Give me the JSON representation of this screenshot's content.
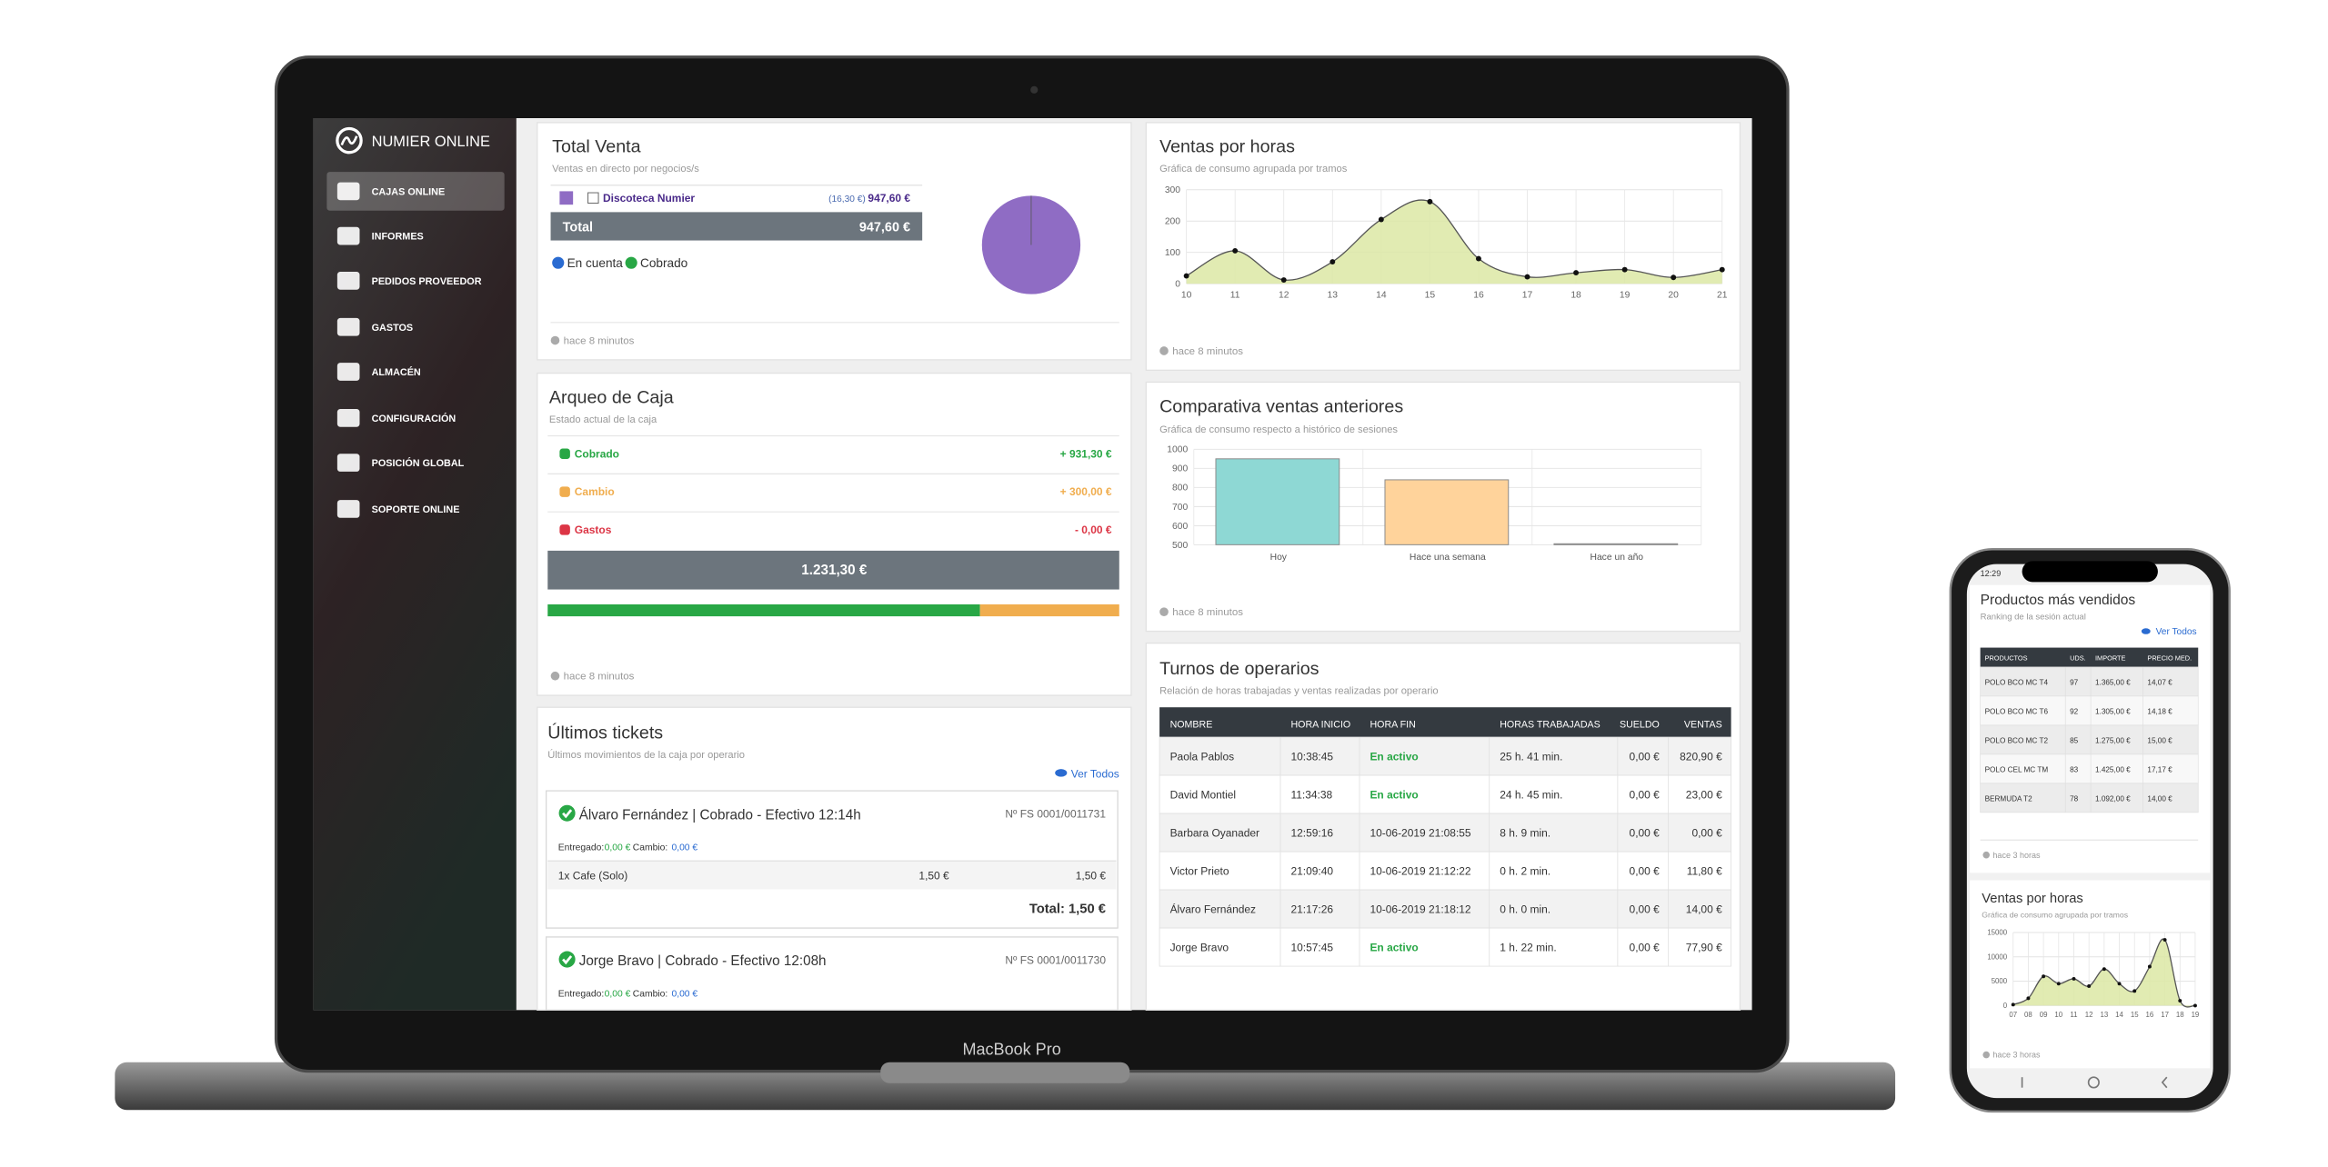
{
  "laptop_label": "MacBook Pro",
  "sidebar": {
    "brand": "NUMIER ONLINE",
    "menu": [
      "CAJAS ONLINE",
      "INFORMES",
      "PEDIDOS PROVEEDOR",
      "GASTOS",
      "ALMACÉN",
      "CONFIGURACIÓN",
      "POSICIÓN GLOBAL",
      "SOPORTE ONLINE"
    ]
  },
  "total_venta": {
    "title": "Total Venta",
    "subtitle": "Ventas en directo por negocios/s",
    "business": "Discoteca Numier",
    "business_detail": "(16,30 €)",
    "business_amount": "947,60 €",
    "total_label": "Total",
    "total_amount": "947,60 €",
    "legend": [
      "En cuenta",
      "Cobrado"
    ],
    "updated": "hace 8 minutos",
    "pie": {
      "type": "pie",
      "values": [
        947.6
      ],
      "colors": [
        "#8f6cc4"
      ]
    }
  },
  "arqueo": {
    "title": "Arqueo de Caja",
    "subtitle": "Estado actual de la caja",
    "rows": [
      {
        "label": "Cobrado",
        "amount": "+ 931,30 €"
      },
      {
        "label": "Cambio",
        "amount": "+ 300,00 €"
      },
      {
        "label": "Gastos",
        "amount": "- 0,00 €"
      }
    ],
    "total": "1.231,30 €",
    "progress": {
      "type": "stacked-bar",
      "values": [
        931.3,
        300
      ],
      "colors": [
        "#28a745",
        "#f0ad4e"
      ]
    },
    "updated": "hace 8 minutos"
  },
  "tickets": {
    "title": "Últimos tickets",
    "subtitle": "Últimos movimientos de la caja por operario",
    "view_all": "Ver Todos",
    "items": [
      {
        "header": "Álvaro Fernández | Cobrado - Efectivo 12:14h",
        "number": "Nº FS 0001/0011731",
        "paid_label": "Entregado:",
        "paid": "0,00 €",
        "change_label": "Cambio:",
        "change": "0,00 €",
        "lines": [
          {
            "description": "1x Cafe (Solo)",
            "price": "1,50 €",
            "total": "1,50 €"
          }
        ],
        "total": "Total: 1,50 €"
      },
      {
        "header": "Jorge Bravo | Cobrado - Efectivo 12:08h",
        "number": "Nº FS 0001/0011730",
        "paid_label": "Entregado:",
        "paid": "0,00 €",
        "change_label": "Cambio:",
        "change": "0,00 €"
      }
    ]
  },
  "ventas_horas": {
    "title": "Ventas por horas",
    "subtitle": "Gráfica de consumo agrupada por tramos",
    "updated": "hace 8 minutos",
    "chart": {
      "type": "line",
      "categories": [
        "10",
        "11",
        "12",
        "13",
        "14",
        "15",
        "16",
        "17",
        "18",
        "19",
        "20",
        "21"
      ],
      "values": [
        25,
        105,
        12,
        70,
        205,
        262,
        80,
        22,
        35,
        45,
        20,
        45
      ],
      "ylim": [
        0,
        300
      ],
      "yticks": [
        0,
        100,
        200,
        300
      ],
      "color": "#dce8a4",
      "grid": true
    }
  },
  "comparativa": {
    "title": "Comparativa ventas anteriores",
    "subtitle": "Gráfica de consumo respecto a histórico de sesiones",
    "updated": "hace 8 minutos",
    "chart": {
      "type": "bar",
      "categories": [
        "Hoy",
        "Hace una semana",
        "Hace un año"
      ],
      "values": [
        950,
        840,
        505
      ],
      "colors": [
        "#8ed8d4",
        "#ffd39b",
        "#e6e6e6"
      ],
      "ylim": [
        500,
        1000
      ],
      "yticks": [
        500,
        600,
        700,
        800,
        900,
        1000
      ],
      "grid": true
    }
  },
  "turnos": {
    "title": "Turnos de operarios",
    "subtitle": "Relación de horas trabajadas y ventas realizadas por operario",
    "table": {
      "header": [
        "NOMBRE",
        "HORA INICIO",
        "HORA FIN",
        "HORAS TRABAJADAS",
        "SUELDO",
        "VENTAS"
      ],
      "rows": [
        [
          "Paola Pablos",
          "10:38:45",
          "En activo",
          "25 h. 41 min.",
          "0,00 €",
          "820,90 €"
        ],
        [
          "David Montiel",
          "11:34:38",
          "En activo",
          "24 h. 45 min.",
          "0,00 €",
          "23,00 €"
        ],
        [
          "Barbara Oyanader",
          "12:59:16",
          "10-06-2019 21:08:55",
          "8 h. 9 min.",
          "0,00 €",
          "0,00 €"
        ],
        [
          "Victor Prieto",
          "21:09:40",
          "10-06-2019 21:12:22",
          "0 h. 2 min.",
          "0,00 €",
          "11,80 €"
        ],
        [
          "Álvaro Fernández",
          "21:17:26",
          "10-06-2019 21:18:12",
          "0 h. 0 min.",
          "0,00 €",
          "14,00 €"
        ],
        [
          "Jorge Bravo",
          "10:57:45",
          "En activo",
          "1 h. 22 min.",
          "0,00 €",
          "77,90 €"
        ]
      ]
    }
  },
  "phone": {
    "status_time": "12:29",
    "productos": {
      "title": "Productos más vendidos",
      "subtitle": "Ranking de la sesión actual",
      "view_all": "Ver Todos",
      "table": {
        "header": [
          "PRODUCTOS",
          "UDS.",
          "IMPORTE",
          "PRECIO MED."
        ],
        "rows": [
          [
            "POLO BCO MC T4",
            "97",
            "1.365,00 €",
            "14,07 €"
          ],
          [
            "POLO BCO MC T6",
            "92",
            "1.305,00 €",
            "14,18 €"
          ],
          [
            "POLO BCO MC T2",
            "85",
            "1.275,00 €",
            "15,00 €"
          ],
          [
            "POLO CEL MC TM",
            "83",
            "1.425,00 €",
            "17,17 €"
          ],
          [
            "BERMUDA T2",
            "78",
            "1.092,00 €",
            "14,00 €"
          ]
        ]
      },
      "updated": "hace 3 horas"
    },
    "ventas_horas": {
      "title": "Ventas por horas",
      "subtitle": "Gráfica de consumo agrupada por tramos",
      "updated": "hace 3 horas",
      "chart": {
        "type": "line",
        "categories": [
          "07",
          "08",
          "09",
          "10",
          "11",
          "12",
          "13",
          "14",
          "15",
          "16",
          "17",
          "18",
          "19"
        ],
        "values": [
          200,
          1500,
          6000,
          4500,
          5500,
          4000,
          7500,
          4500,
          3000,
          8000,
          13500,
          1000,
          0
        ],
        "ylim": [
          0,
          15000
        ],
        "yticks": [
          0,
          5000,
          10000,
          15000
        ],
        "color": "#dce8a4",
        "grid": true
      }
    }
  }
}
